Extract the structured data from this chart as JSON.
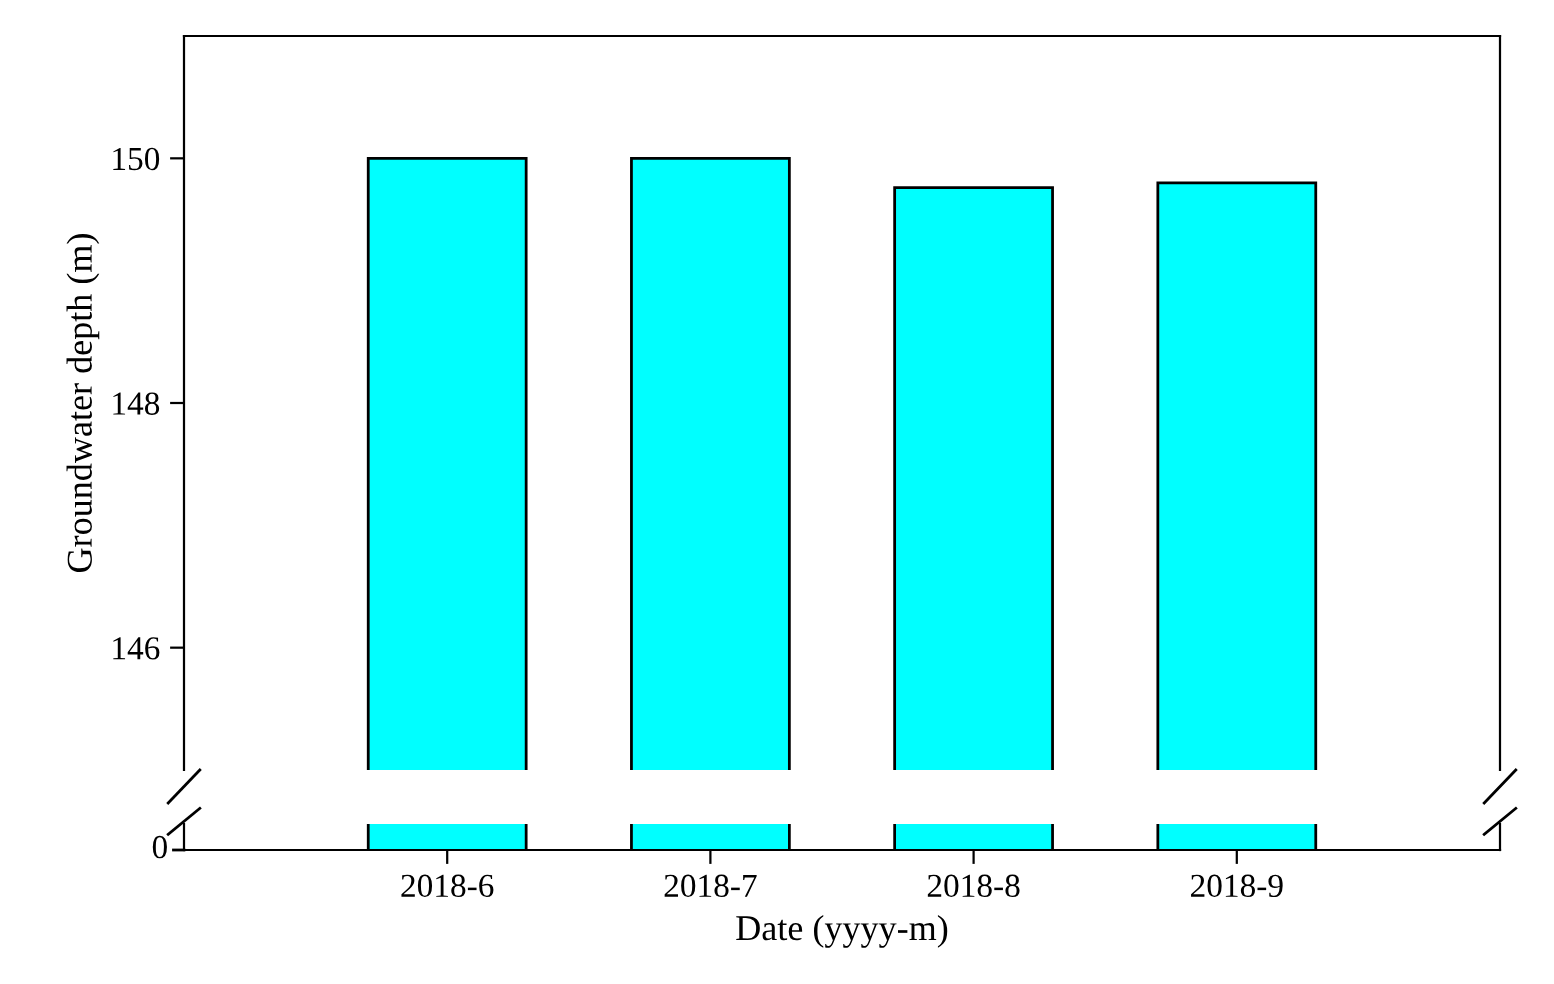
{
  "chart_data": {
    "type": "bar",
    "categories": [
      "2018-6",
      "2018-7",
      "2018-8",
      "2018-9"
    ],
    "values": [
      150.0,
      150.0,
      149.76,
      149.8
    ],
    "color": "#00ffff",
    "xlabel": "Date (yyyy-m)",
    "ylabel": "Groundwater depth (m)",
    "ylim": [
      145,
      151
    ],
    "yticks": [
      146,
      148,
      150
    ],
    "annotations": [
      "0"
    ],
    "grid": false
  }
}
